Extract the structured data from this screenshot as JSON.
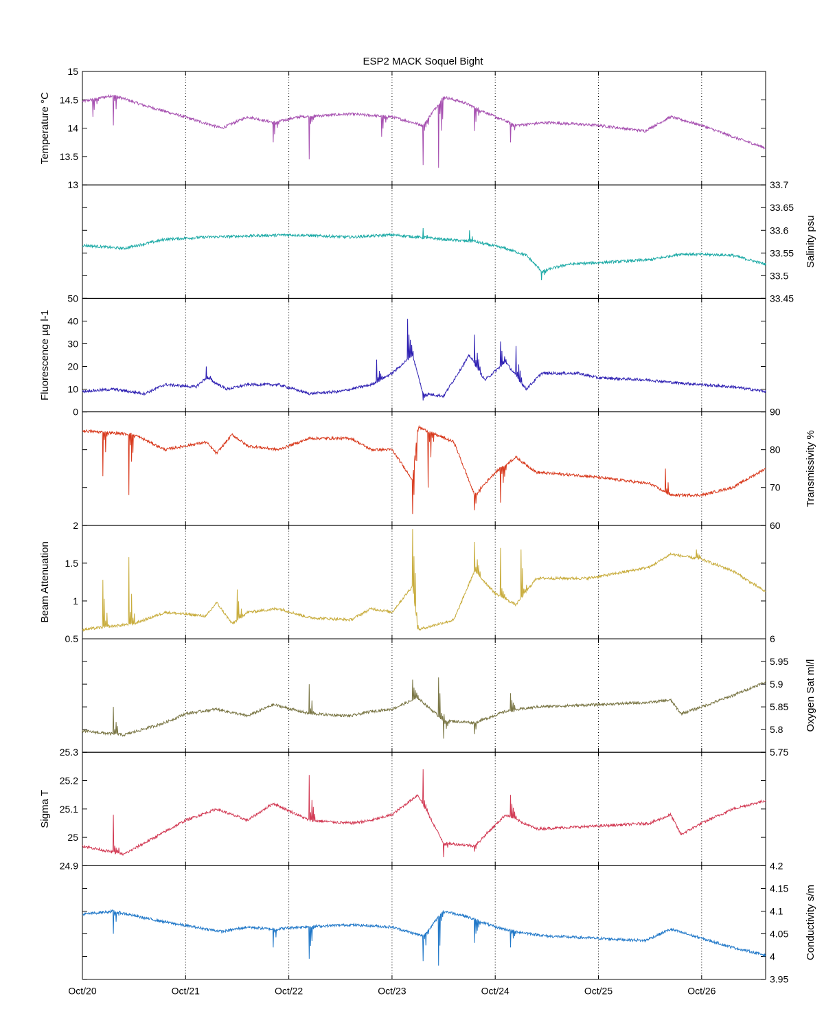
{
  "chart_data": {
    "type": "line",
    "title": "ESP2 MACK  Soquel Bight",
    "x_axis": {
      "tick_labels": [
        "Oct/20",
        "Oct/21",
        "Oct/22",
        "Oct/23",
        "Oct/24",
        "Oct/25",
        "Oct/26"
      ],
      "range_days": [
        0,
        6.62
      ],
      "grid": "vertical dotted at each day"
    },
    "panels": [
      {
        "ylabel": "Temperature °C",
        "axis_side": "left",
        "ylim": [
          13,
          15
        ],
        "ticks": [
          13,
          13.5,
          14,
          14.5,
          15
        ],
        "tick_labels": [
          "13",
          "13.5",
          "14",
          "14.5",
          "15"
        ],
        "color": "#a64fb0",
        "baseline": [
          [
            0,
            14.47
          ],
          [
            0.3,
            14.58
          ],
          [
            0.6,
            14.4
          ],
          [
            0.95,
            14.22
          ],
          [
            1.35,
            14.0
          ],
          [
            1.6,
            14.2
          ],
          [
            1.85,
            14.1
          ],
          [
            2.1,
            14.2
          ],
          [
            2.6,
            14.25
          ],
          [
            3.0,
            14.2
          ],
          [
            3.3,
            14.05
          ],
          [
            3.5,
            14.55
          ],
          [
            3.7,
            14.45
          ],
          [
            4.0,
            14.2
          ],
          [
            4.2,
            14.05
          ],
          [
            4.5,
            14.1
          ],
          [
            5.0,
            14.05
          ],
          [
            5.45,
            13.95
          ],
          [
            5.7,
            14.2
          ],
          [
            6.0,
            14.05
          ],
          [
            6.3,
            13.85
          ],
          [
            6.62,
            13.65
          ]
        ],
        "spikes": [
          [
            0.1,
            14.2
          ],
          [
            0.3,
            14.05
          ],
          [
            1.85,
            13.75
          ],
          [
            2.2,
            13.45
          ],
          [
            2.9,
            13.85
          ],
          [
            3.3,
            13.35
          ],
          [
            3.45,
            13.3
          ],
          [
            3.8,
            13.95
          ],
          [
            4.15,
            13.75
          ]
        ]
      },
      {
        "ylabel": "Salinity psu",
        "axis_side": "right",
        "ylim": [
          33.45,
          33.7
        ],
        "ticks": [
          33.45,
          33.5,
          33.55,
          33.6,
          33.65,
          33.7
        ],
        "tick_labels": [
          "33.45",
          "33.5",
          "33.55",
          "33.6",
          "33.65",
          "33.7"
        ],
        "color": "#1aa9a5",
        "baseline": [
          [
            0,
            33.567
          ],
          [
            0.4,
            33.56
          ],
          [
            0.8,
            33.58
          ],
          [
            1.2,
            33.585
          ],
          [
            2.0,
            33.59
          ],
          [
            2.6,
            33.585
          ],
          [
            3.0,
            33.59
          ],
          [
            3.5,
            33.58
          ],
          [
            3.8,
            33.575
          ],
          [
            4.1,
            33.56
          ],
          [
            4.3,
            33.545
          ],
          [
            4.45,
            33.51
          ],
          [
            4.7,
            33.525
          ],
          [
            5.1,
            33.53
          ],
          [
            5.5,
            33.535
          ],
          [
            5.8,
            33.548
          ],
          [
            6.3,
            33.545
          ],
          [
            6.62,
            33.525
          ]
        ],
        "spikes": [
          [
            4.45,
            33.49
          ],
          [
            3.75,
            33.6
          ],
          [
            3.3,
            33.605
          ]
        ]
      },
      {
        "ylabel": "Fluorescence µg l-1",
        "axis_side": "left",
        "ylim": [
          0,
          50
        ],
        "ticks": [
          0,
          10,
          20,
          30,
          40,
          50
        ],
        "tick_labels": [
          "0",
          "10",
          "20",
          "30",
          "40",
          "50"
        ],
        "color": "#2d1fb2",
        "baseline": [
          [
            0,
            9
          ],
          [
            0.3,
            10
          ],
          [
            0.6,
            8
          ],
          [
            0.8,
            12
          ],
          [
            1.1,
            11
          ],
          [
            1.2,
            15
          ],
          [
            1.4,
            10
          ],
          [
            1.6,
            12
          ],
          [
            1.9,
            12
          ],
          [
            2.2,
            8
          ],
          [
            2.5,
            9
          ],
          [
            2.8,
            12
          ],
          [
            3.0,
            17
          ],
          [
            3.2,
            25
          ],
          [
            3.3,
            8
          ],
          [
            3.5,
            7
          ],
          [
            3.75,
            25
          ],
          [
            3.9,
            14
          ],
          [
            4.1,
            22
          ],
          [
            4.3,
            10
          ],
          [
            4.45,
            17
          ],
          [
            4.8,
            17
          ],
          [
            5.0,
            15
          ],
          [
            5.5,
            14
          ],
          [
            5.7,
            13
          ],
          [
            6.3,
            11
          ],
          [
            6.62,
            9
          ]
        ],
        "spikes": [
          [
            3.15,
            41
          ],
          [
            2.85,
            23
          ],
          [
            3.8,
            34
          ],
          [
            4.05,
            31
          ],
          [
            4.2,
            29
          ],
          [
            1.2,
            20
          ],
          [
            3.3,
            5
          ]
        ]
      },
      {
        "ylabel": "Transmissivity %",
        "axis_side": "right",
        "ylim": [
          60,
          90
        ],
        "ticks": [
          60,
          70,
          80,
          90
        ],
        "tick_labels": [
          "60",
          "70",
          "80",
          "90"
        ],
        "color": "#d8391c",
        "baseline": [
          [
            0,
            85
          ],
          [
            0.5,
            84
          ],
          [
            0.8,
            80
          ],
          [
            1.2,
            82
          ],
          [
            1.3,
            79
          ],
          [
            1.45,
            84
          ],
          [
            1.6,
            81
          ],
          [
            1.9,
            80
          ],
          [
            2.2,
            83
          ],
          [
            2.6,
            83
          ],
          [
            2.8,
            80
          ],
          [
            3.0,
            80
          ],
          [
            3.2,
            72
          ],
          [
            3.25,
            86
          ],
          [
            3.6,
            82
          ],
          [
            3.8,
            68
          ],
          [
            4.0,
            74
          ],
          [
            4.2,
            78
          ],
          [
            4.4,
            74
          ],
          [
            4.9,
            73
          ],
          [
            5.2,
            72
          ],
          [
            5.5,
            71
          ],
          [
            5.7,
            68
          ],
          [
            6.0,
            68
          ],
          [
            6.3,
            70
          ],
          [
            6.62,
            75
          ]
        ],
        "spikes": [
          [
            0.2,
            73
          ],
          [
            0.45,
            68
          ],
          [
            3.2,
            63
          ],
          [
            3.35,
            70
          ],
          [
            3.8,
            64
          ],
          [
            4.05,
            66
          ],
          [
            5.65,
            75
          ]
        ]
      },
      {
        "ylabel": "Beam Attenuation",
        "axis_side": "left",
        "ylim": [
          0.5,
          2
        ],
        "ticks": [
          0.5,
          1,
          1.5,
          2
        ],
        "tick_labels": [
          "0.5",
          "1",
          "1.5",
          "2"
        ],
        "color": "#c8ac3c",
        "baseline": [
          [
            0,
            0.62
          ],
          [
            0.5,
            0.7
          ],
          [
            0.8,
            0.85
          ],
          [
            1.2,
            0.8
          ],
          [
            1.3,
            0.98
          ],
          [
            1.45,
            0.7
          ],
          [
            1.6,
            0.85
          ],
          [
            1.9,
            0.9
          ],
          [
            2.2,
            0.78
          ],
          [
            2.6,
            0.75
          ],
          [
            2.8,
            0.9
          ],
          [
            3.0,
            0.85
          ],
          [
            3.2,
            1.2
          ],
          [
            3.25,
            0.62
          ],
          [
            3.6,
            0.75
          ],
          [
            3.8,
            1.4
          ],
          [
            4.0,
            1.1
          ],
          [
            4.2,
            0.95
          ],
          [
            4.4,
            1.3
          ],
          [
            4.9,
            1.3
          ],
          [
            5.2,
            1.37
          ],
          [
            5.5,
            1.45
          ],
          [
            5.7,
            1.62
          ],
          [
            6.0,
            1.55
          ],
          [
            6.3,
            1.4
          ],
          [
            6.62,
            1.12
          ]
        ],
        "spikes": [
          [
            0.45,
            1.58
          ],
          [
            0.2,
            1.28
          ],
          [
            1.5,
            1.15
          ],
          [
            3.2,
            1.95
          ],
          [
            3.8,
            1.78
          ],
          [
            4.05,
            1.7
          ],
          [
            4.25,
            1.68
          ],
          [
            5.95,
            1.68
          ]
        ]
      },
      {
        "ylabel": "Oxygen Sat ml/l",
        "axis_side": "right",
        "ylim": [
          5.75,
          6
        ],
        "ticks": [
          5.75,
          5.8,
          5.85,
          5.9,
          5.95,
          6
        ],
        "tick_labels": [
          "5.75",
          "5.8",
          "5.85",
          "5.9",
          "5.95",
          "6"
        ],
        "color": "#7a7645",
        "baseline": [
          [
            0,
            5.797
          ],
          [
            0.4,
            5.788
          ],
          [
            0.8,
            5.815
          ],
          [
            1.0,
            5.835
          ],
          [
            1.3,
            5.845
          ],
          [
            1.6,
            5.83
          ],
          [
            1.85,
            5.855
          ],
          [
            2.2,
            5.835
          ],
          [
            2.6,
            5.83
          ],
          [
            2.8,
            5.84
          ],
          [
            3.0,
            5.845
          ],
          [
            3.25,
            5.87
          ],
          [
            3.5,
            5.82
          ],
          [
            3.8,
            5.815
          ],
          [
            4.1,
            5.84
          ],
          [
            4.4,
            5.85
          ],
          [
            5.0,
            5.855
          ],
          [
            5.5,
            5.86
          ],
          [
            5.7,
            5.865
          ],
          [
            5.8,
            5.835
          ],
          [
            6.0,
            5.85
          ],
          [
            6.3,
            5.875
          ],
          [
            6.62,
            5.905
          ]
        ],
        "spikes": [
          [
            0.3,
            5.85
          ],
          [
            2.2,
            5.9
          ],
          [
            3.2,
            5.91
          ],
          [
            3.45,
            5.915
          ],
          [
            3.5,
            5.78
          ],
          [
            3.8,
            5.79
          ],
          [
            4.15,
            5.88
          ]
        ]
      },
      {
        "ylabel": "Sigma T",
        "axis_side": "left",
        "ylim": [
          24.9,
          25.3
        ],
        "ticks": [
          24.9,
          25,
          25.1,
          25.2,
          25.3
        ],
        "tick_labels": [
          "24.9",
          "25",
          "25.1",
          "25.2",
          "25.3"
        ],
        "color": "#d23a54",
        "baseline": [
          [
            0,
            24.97
          ],
          [
            0.4,
            24.94
          ],
          [
            0.7,
            25.0
          ],
          [
            1.0,
            25.06
          ],
          [
            1.3,
            25.1
          ],
          [
            1.6,
            25.06
          ],
          [
            1.85,
            25.12
          ],
          [
            2.2,
            25.06
          ],
          [
            2.6,
            25.05
          ],
          [
            2.8,
            25.06
          ],
          [
            3.0,
            25.08
          ],
          [
            3.25,
            25.15
          ],
          [
            3.5,
            24.98
          ],
          [
            3.8,
            24.97
          ],
          [
            4.1,
            25.08
          ],
          [
            4.4,
            25.03
          ],
          [
            5.0,
            25.04
          ],
          [
            5.5,
            25.05
          ],
          [
            5.7,
            25.08
          ],
          [
            5.8,
            25.01
          ],
          [
            6.0,
            25.05
          ],
          [
            6.3,
            25.1
          ],
          [
            6.62,
            25.13
          ]
        ],
        "spikes": [
          [
            0.3,
            25.08
          ],
          [
            2.2,
            25.22
          ],
          [
            3.3,
            25.24
          ],
          [
            3.5,
            24.93
          ],
          [
            3.8,
            24.95
          ],
          [
            4.15,
            25.15
          ]
        ]
      },
      {
        "ylabel": "Conductivity s/m",
        "axis_side": "right",
        "ylim": [
          3.95,
          4.2
        ],
        "ticks": [
          3.95,
          4,
          4.05,
          4.1,
          4.15,
          4.2
        ],
        "tick_labels": [
          "3.95",
          "4",
          "4.05",
          "4.1",
          "4.15",
          "4.2"
        ],
        "color": "#1f77c8",
        "baseline": [
          [
            0,
            4.093
          ],
          [
            0.3,
            4.1
          ],
          [
            0.6,
            4.085
          ],
          [
            0.95,
            4.07
          ],
          [
            1.35,
            4.055
          ],
          [
            1.6,
            4.065
          ],
          [
            1.85,
            4.06
          ],
          [
            2.1,
            4.065
          ],
          [
            2.6,
            4.07
          ],
          [
            3.0,
            4.065
          ],
          [
            3.3,
            4.045
          ],
          [
            3.5,
            4.1
          ],
          [
            3.7,
            4.09
          ],
          [
            4.0,
            4.065
          ],
          [
            4.2,
            4.055
          ],
          [
            4.5,
            4.045
          ],
          [
            5.0,
            4.04
          ],
          [
            5.45,
            4.035
          ],
          [
            5.7,
            4.06
          ],
          [
            6.0,
            4.04
          ],
          [
            6.3,
            4.02
          ],
          [
            6.62,
            4.003
          ]
        ],
        "spikes": [
          [
            0.3,
            4.05
          ],
          [
            1.85,
            4.02
          ],
          [
            2.2,
            3.995
          ],
          [
            3.3,
            3.99
          ],
          [
            3.45,
            3.98
          ],
          [
            3.8,
            4.03
          ],
          [
            4.15,
            4.02
          ]
        ]
      }
    ]
  }
}
